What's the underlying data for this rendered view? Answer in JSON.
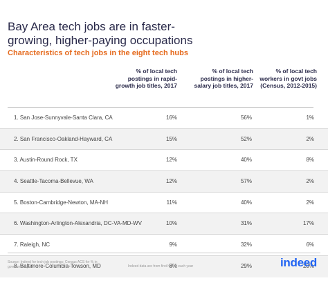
{
  "title": "Bay Area tech jobs are in faster-growing, higher-paying occupations",
  "subtitle": "Characteristics of tech jobs in the eight tech hubs",
  "table": {
    "columns": [
      "% of local tech postings in rapid-growth job titles, 2017",
      "% of local tech postings in higher-salary job titles, 2017",
      "% of local tech workers in govt jobs (Census, 2012-2015)"
    ],
    "rows": [
      {
        "name": "1. San Jose-Sunnyvale-Santa Clara, CA",
        "v1": "16%",
        "v2": "56%",
        "v3": "1%"
      },
      {
        "name": "2. San Francisco-Oakland-Hayward, CA",
        "v1": "15%",
        "v2": "52%",
        "v3": "2%"
      },
      {
        "name": "3. Austin-Round Rock, TX",
        "v1": "12%",
        "v2": "40%",
        "v3": "8%"
      },
      {
        "name": "4. Seattle-Tacoma-Bellevue, WA",
        "v1": "12%",
        "v2": "57%",
        "v3": "2%"
      },
      {
        "name": "5. Boston-Cambridge-Newton, MA-NH",
        "v1": "11%",
        "v2": "40%",
        "v3": "2%"
      },
      {
        "name": "6. Washington-Arlington-Alexandria, DC-VA-MD-WV",
        "v1": "10%",
        "v2": "31%",
        "v3": "17%"
      },
      {
        "name": "7. Raleigh, NC",
        "v1": "9%",
        "v2": "32%",
        "v3": "6%"
      },
      {
        "name": "8. Baltimore-Columbia-Towson, MD",
        "v1": "8%",
        "v2": "29%",
        "v3": "20%"
      }
    ]
  },
  "footer": {
    "source": "Source: Indeed for tech job postings; Census ACS for % in government jobs",
    "note": "Indeed data are from first half of each year",
    "logo": "indeed"
  },
  "colors": {
    "title": "#2a2a4a",
    "subtitle": "#e56b1f",
    "row_alt": "#f2f2f2",
    "logo": "#2164f3"
  }
}
